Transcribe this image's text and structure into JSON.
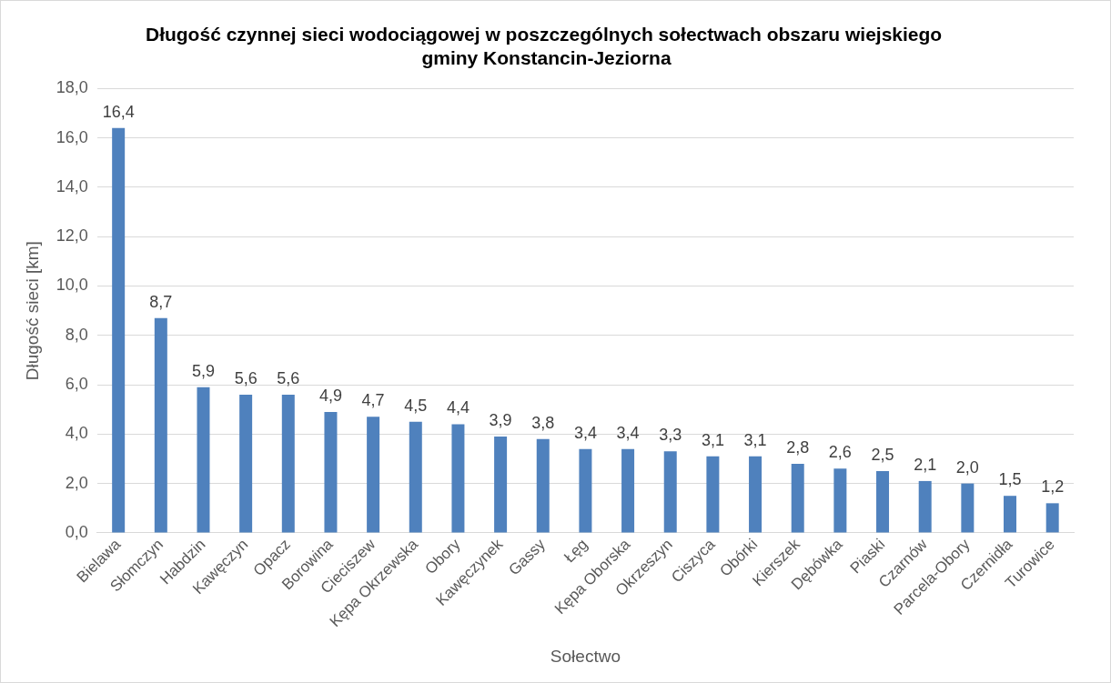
{
  "chart_data": {
    "type": "bar",
    "title": "Długość czynnej sieci wodociągowej w poszczególnych sołectwach obszaru wiejskiego  gminy Konstancin-Jeziorna",
    "xlabel": "Sołectwo",
    "ylabel": "Długość sieci [km]",
    "categories": [
      "Bielawa",
      "Słomczyn",
      "Habdzin",
      "Kawęczyn",
      "Opacz",
      "Borowina",
      "Cieciszew",
      "Kępa Okrzewska",
      "Obory",
      "Kawęczynek",
      "Gassy",
      "Łęg",
      "Kępa Oborska",
      "Okrzeszyn",
      "Ciszyca",
      "Obórki",
      "Kierszek",
      "Dębówka",
      "Piaski",
      "Czarnów",
      "Parcela-Obory",
      "Czernidła",
      "Turowice"
    ],
    "values": [
      16.4,
      8.7,
      5.9,
      5.6,
      5.6,
      4.9,
      4.7,
      4.5,
      4.4,
      3.9,
      3.8,
      3.4,
      3.4,
      3.3,
      3.1,
      3.1,
      2.8,
      2.6,
      2.5,
      2.1,
      2.0,
      1.5,
      1.2
    ],
    "value_labels": [
      "16,4",
      "8,7",
      "5,9",
      "5,6",
      "5,6",
      "4,9",
      "4,7",
      "4,5",
      "4,4",
      "3,9",
      "3,8",
      "3,4",
      "3,4",
      "3,3",
      "3,1",
      "3,1",
      "2,8",
      "2,6",
      "2,5",
      "2,1",
      "2,0",
      "1,5",
      "1,2"
    ],
    "color": "#4f81bd",
    "ylim": [
      0,
      18
    ],
    "yticks": [
      {
        "value": 0,
        "label": "0,0"
      },
      {
        "value": 2,
        "label": "2,0"
      },
      {
        "value": 4,
        "label": "4,0"
      },
      {
        "value": 6,
        "label": "6,0"
      },
      {
        "value": 8,
        "label": "8,0"
      },
      {
        "value": 10,
        "label": "10,0"
      },
      {
        "value": 12,
        "label": "12,0"
      },
      {
        "value": 14,
        "label": "14,0"
      },
      {
        "value": 16,
        "label": "16,0"
      },
      {
        "value": 18,
        "label": "18,0"
      }
    ],
    "grid": "y"
  }
}
